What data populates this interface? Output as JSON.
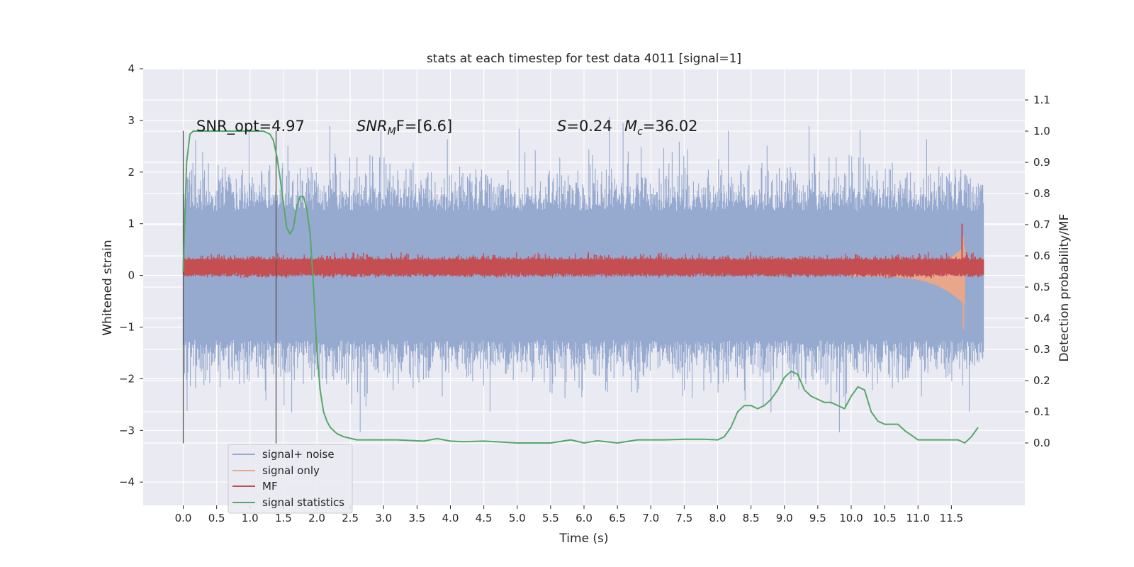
{
  "chart_data": {
    "type": "line",
    "title": "stats at each timestep for test data 4011 [signal=1]",
    "xlabel": "Time (s)",
    "ylabel_left": "Whitened strain",
    "ylabel_right": "Detection probability/MF",
    "xlim": [
      -0.6,
      12.6
    ],
    "ylim_left": [
      -4.45,
      4.0
    ],
    "ylim_right": [
      -0.2,
      1.2
    ],
    "x_ticks": [
      "0.0",
      "0.5",
      "1.0",
      "1.5",
      "2.0",
      "2.5",
      "3.0",
      "3.5",
      "4.0",
      "4.5",
      "5.0",
      "5.5",
      "6.0",
      "6.5",
      "7.0",
      "7.5",
      "8.0",
      "8.5",
      "9.0",
      "9.5",
      "10.0",
      "10.5",
      "11.0",
      "11.5"
    ],
    "y_left_ticks": [
      "4",
      "3",
      "2",
      "1",
      "0",
      "−1",
      "−2",
      "−3",
      "−4"
    ],
    "y_right_ticks": [
      "1.1",
      "1.0",
      "0.9",
      "0.8",
      "0.7",
      "0.6",
      "0.5",
      "0.4",
      "0.3",
      "0.2",
      "0.1",
      "0.0"
    ],
    "annotations": {
      "snr_opt": "SNR_opt=4.97",
      "snr_mf_main": "SNR",
      "snr_mf_sub": "M",
      "snr_mf_rest": "F=[6.6]",
      "s_main": "S",
      "s_rest": "=0.24",
      "mc_main": "M",
      "mc_sub": "c",
      "mc_rest": "=36.02"
    },
    "vertical_lines_x": [
      0.0,
      1.39
    ],
    "series": [
      {
        "name": "signal+ noise",
        "color": "#96a9cf",
        "axis": "left",
        "description_range": [
          -2.9,
          3.6
        ]
      },
      {
        "name": "signal only",
        "color": "#e8a68a",
        "axis": "left"
      },
      {
        "name": "MF",
        "color": "#c44e52",
        "axis": "left"
      },
      {
        "name": "signal statistics",
        "color": "#55a868",
        "axis": "right",
        "x": [
          0.0,
          0.05,
          0.1,
          0.15,
          0.2,
          0.3,
          0.4,
          0.6,
          0.8,
          1.0,
          1.1,
          1.2,
          1.3,
          1.35,
          1.4,
          1.45,
          1.5,
          1.55,
          1.6,
          1.65,
          1.7,
          1.75,
          1.8,
          1.85,
          1.9,
          1.95,
          2.0,
          2.05,
          2.1,
          2.15,
          2.2,
          2.3,
          2.4,
          2.5,
          2.6,
          2.8,
          3.0,
          3.2,
          3.4,
          3.6,
          3.8,
          4.0,
          4.2,
          4.5,
          5.0,
          5.5,
          5.8,
          6.0,
          6.2,
          6.5,
          6.8,
          7.0,
          7.2,
          7.5,
          7.8,
          8.0,
          8.1,
          8.2,
          8.3,
          8.4,
          8.5,
          8.6,
          8.7,
          8.8,
          8.9,
          9.0,
          9.1,
          9.2,
          9.3,
          9.4,
          9.5,
          9.6,
          9.7,
          9.8,
          9.9,
          10.0,
          10.1,
          10.2,
          10.3,
          10.4,
          10.5,
          10.6,
          10.7,
          10.8,
          11.0,
          11.3,
          11.6,
          11.7,
          11.8,
          11.9
        ],
        "y": [
          0.55,
          0.9,
          0.99,
          1.0,
          1.0,
          1.0,
          1.0,
          1.0,
          1.0,
          1.0,
          1.0,
          1.0,
          0.99,
          0.97,
          0.92,
          0.85,
          0.77,
          0.69,
          0.67,
          0.69,
          0.76,
          0.79,
          0.79,
          0.75,
          0.67,
          0.5,
          0.3,
          0.17,
          0.1,
          0.07,
          0.05,
          0.03,
          0.02,
          0.015,
          0.01,
          0.01,
          0.01,
          0.01,
          0.008,
          0.006,
          0.014,
          0.006,
          0.004,
          0.006,
          0.0,
          0.0,
          0.01,
          0.0,
          0.007,
          0.0,
          0.01,
          0.01,
          0.01,
          0.012,
          0.012,
          0.01,
          0.02,
          0.05,
          0.1,
          0.12,
          0.12,
          0.11,
          0.12,
          0.14,
          0.17,
          0.21,
          0.23,
          0.22,
          0.17,
          0.15,
          0.14,
          0.13,
          0.13,
          0.12,
          0.11,
          0.15,
          0.18,
          0.17,
          0.1,
          0.07,
          0.06,
          0.06,
          0.06,
          0.04,
          0.01,
          0.01,
          0.01,
          0.0,
          0.02,
          0.05
        ]
      }
    ],
    "legend_location": "lower-left",
    "grid": true
  }
}
